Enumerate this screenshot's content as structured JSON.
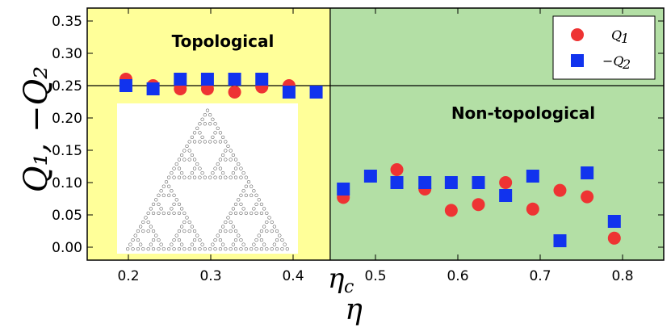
{
  "chart_data": {
    "type": "scatter",
    "xlabel": "η",
    "ylabel": "Q₁, −Q₂",
    "xlim": [
      0.15,
      0.85
    ],
    "ylim": [
      -0.02,
      0.37
    ],
    "xticks": [
      0.2,
      0.3,
      0.4,
      0.5,
      0.6,
      0.7,
      0.8
    ],
    "xtick_labels": [
      "0.2",
      "0.3",
      "0.4",
      "0.5",
      "0.6",
      "0.7",
      "0.8"
    ],
    "yticks": [
      0.0,
      0.05,
      0.1,
      0.15,
      0.2,
      0.25,
      0.3,
      0.35
    ],
    "ytick_labels": [
      "0.00",
      "0.05",
      "0.10",
      "0.15",
      "0.20",
      "0.25",
      "0.30",
      "0.35"
    ],
    "critical_point": {
      "label": "η",
      "subscript": "c",
      "x": 0.445
    },
    "reference_line": {
      "y": 0.25
    },
    "regions": [
      {
        "label": "Topological",
        "from": 0.15,
        "to": 0.445,
        "color": "#ffff99"
      },
      {
        "label": "Non-topological",
        "from": 0.445,
        "to": 0.85,
        "color": "#b3dfa5"
      }
    ],
    "series": [
      {
        "name": "Q",
        "subscript": "1",
        "marker": "circle",
        "color": "#ee3333",
        "x": [
          0.197,
          0.23,
          0.263,
          0.296,
          0.329,
          0.362,
          0.395,
          0.461,
          0.526,
          0.56,
          0.592,
          0.625,
          0.658,
          0.691,
          0.724,
          0.757,
          0.79
        ],
        "y": [
          0.26,
          0.25,
          0.245,
          0.245,
          0.24,
          0.248,
          0.25,
          0.077,
          0.12,
          0.09,
          0.057,
          0.066,
          0.1,
          0.059,
          0.088,
          0.078,
          0.014
        ]
      },
      {
        "name": "−Q",
        "subscript": "2",
        "marker": "square",
        "color": "#1133ee",
        "x": [
          0.197,
          0.23,
          0.263,
          0.296,
          0.329,
          0.362,
          0.395,
          0.428,
          0.461,
          0.494,
          0.526,
          0.56,
          0.592,
          0.625,
          0.658,
          0.691,
          0.724,
          0.757,
          0.79
        ],
        "y": [
          0.25,
          0.245,
          0.26,
          0.26,
          0.26,
          0.26,
          0.24,
          0.24,
          0.09,
          0.11,
          0.1,
          0.1,
          0.1,
          0.1,
          0.08,
          0.11,
          0.01,
          0.115,
          0.04
        ]
      }
    ],
    "legend": {
      "position": "top-right"
    },
    "inset": {
      "type": "sierpinski-gasket",
      "description_hidden": true
    }
  }
}
